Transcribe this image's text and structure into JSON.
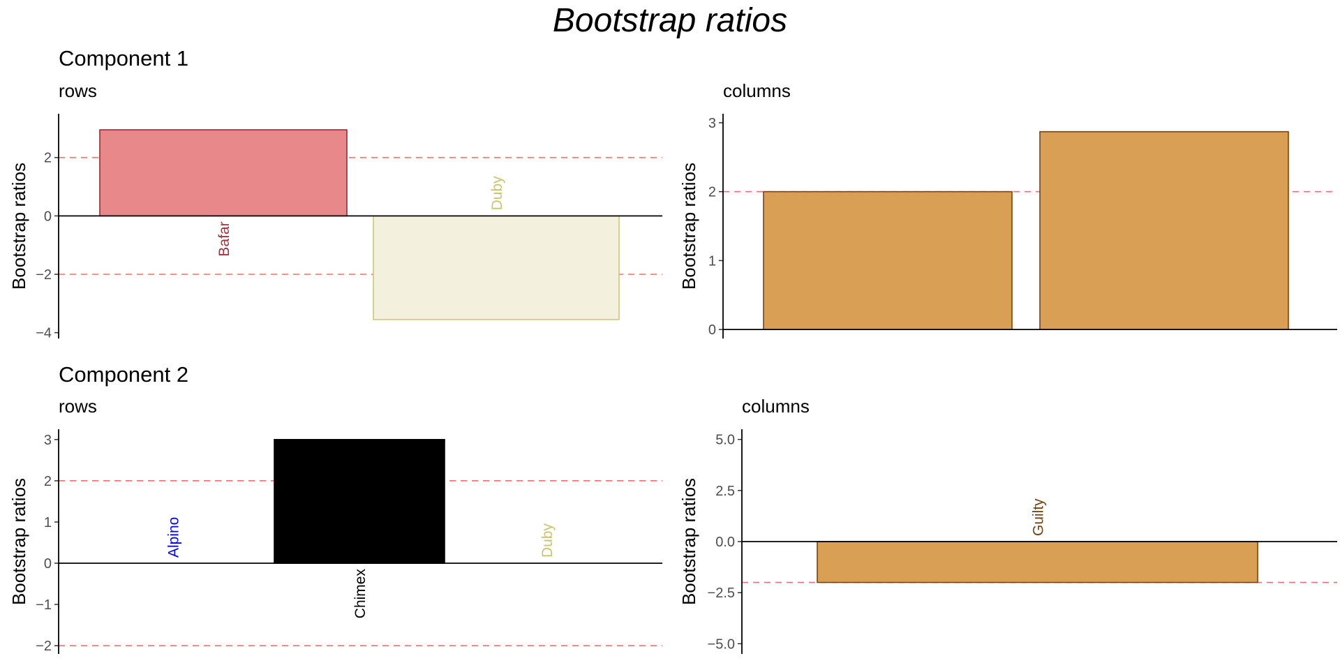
{
  "figure": {
    "title": "Bootstrap ratios",
    "components": [
      {
        "label": "Component 1"
      },
      {
        "label": "Component 2"
      }
    ]
  },
  "chart_data": [
    {
      "type": "bar",
      "component": "Component 1",
      "subtitle": "rows",
      "ylabel": "Bootstrap ratios",
      "categories": [
        "Bafar",
        "Duby"
      ],
      "values": [
        2.95,
        -3.55
      ],
      "bar_colors": [
        "#e8888a",
        "#f3f1de"
      ],
      "bar_outline": [
        "#9b2a30",
        "#cfc774"
      ],
      "label_colors": [
        "#a8323a",
        "#c9c36e"
      ],
      "ylim": [
        -4.2,
        3.5
      ],
      "yticks": [
        -4,
        -2,
        0,
        2
      ],
      "threshold_lines": [
        2,
        -2
      ],
      "grid": false
    },
    {
      "type": "bar",
      "component": "Component 1",
      "subtitle": "columns",
      "ylabel": "Bootstrap ratios",
      "categories": [
        "",
        ""
      ],
      "values": [
        2.0,
        2.87
      ],
      "bar_colors": [
        "#d9a055",
        "#d9a055"
      ],
      "bar_outline": [
        "#7a4212",
        "#7a4212"
      ],
      "label_colors": [
        "#a8323a",
        "#a8323a"
      ],
      "ylim": [
        -0.13,
        3.13
      ],
      "yticks": [
        0,
        1,
        2,
        3
      ],
      "threshold_lines": [
        2
      ],
      "grid": false
    },
    {
      "type": "bar",
      "component": "Component 2",
      "subtitle": "rows",
      "ylabel": "Bootstrap ratios",
      "categories": [
        "Alpino",
        "Chimex",
        "Duby"
      ],
      "values": [
        0,
        3.0,
        0
      ],
      "bar_colors": [
        "#0000ff",
        "#000000",
        "#c9c36e"
      ],
      "bar_outline": [
        "#0000ff",
        "#000000",
        "#c9c36e"
      ],
      "label_colors": [
        "#0000ff",
        "#000000",
        "#c9c36e"
      ],
      "ylim": [
        -2.2,
        3.25
      ],
      "yticks": [
        -2,
        -1,
        0,
        1,
        2,
        3
      ],
      "threshold_lines": [
        2,
        -2
      ],
      "grid": false
    },
    {
      "type": "bar",
      "component": "Component 2",
      "subtitle": "columns",
      "ylabel": "Bootstrap ratios",
      "categories": [
        "Guilty"
      ],
      "values": [
        -2.0
      ],
      "bar_colors": [
        "#d9a055"
      ],
      "bar_outline": [
        "#7a4212"
      ],
      "label_colors": [
        "#7a4212"
      ],
      "ylim": [
        -5.5,
        5.5
      ],
      "yticks": [
        -5.0,
        -2.5,
        0.0,
        2.5,
        5.0
      ],
      "tick_decimals": 1,
      "threshold_lines": [
        -2
      ],
      "grid": false
    }
  ]
}
